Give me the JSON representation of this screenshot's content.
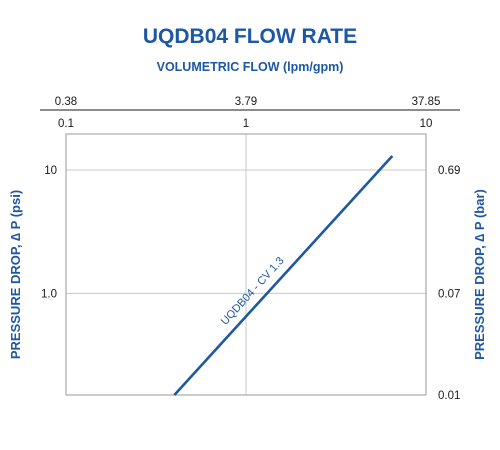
{
  "chart_data": {
    "type": "line",
    "title": "UQDB04 FLOW RATE",
    "subtitle": "VOLUMETRIC FLOW (lpm/gpm)",
    "ylabel_left": "PRESSURE DROP, ∆ P (psi)",
    "ylabel_right": "PRESSURE DROP, ∆ P (bar)",
    "x_scale": "log",
    "y_scale": "log",
    "xlim": [
      0.1,
      10
    ],
    "ylim": [
      0.15,
      10
    ],
    "x_ticks_bottom": [
      {
        "value": 0.1,
        "label": "0.1"
      },
      {
        "value": 1,
        "label": "1"
      },
      {
        "value": 10,
        "label": "10"
      }
    ],
    "x_ticks_top": [
      {
        "value": 0.1,
        "label": "0.38"
      },
      {
        "value": 1,
        "label": "3.79"
      },
      {
        "value": 10,
        "label": "37.85"
      }
    ],
    "y_ticks_left": [
      {
        "value": 10,
        "label": "10"
      },
      {
        "value": 1,
        "label": "1.0"
      }
    ],
    "y_ticks_right": [
      {
        "value": 10,
        "label": "0.69"
      },
      {
        "value": 1,
        "label": "0.07"
      },
      {
        "value": 0.15,
        "label": "0.01"
      }
    ],
    "grid": true,
    "series": [
      {
        "name": "UQDB04 - CV 1.3",
        "color": "#1e57a4",
        "x": [
          0.4,
          6.5
        ],
        "y": [
          0.15,
          13
        ]
      }
    ]
  }
}
